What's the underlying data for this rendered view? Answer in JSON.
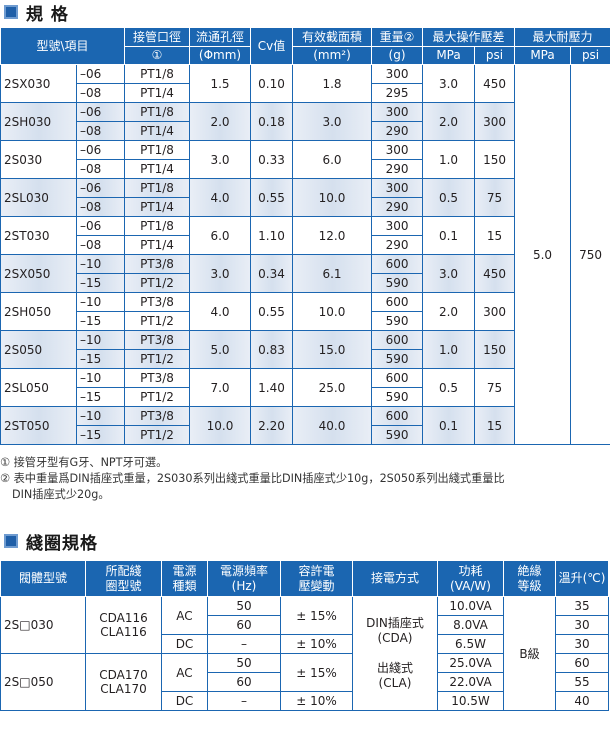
{
  "spec_section": {
    "title": "規 格",
    "headers": {
      "type": "型號\\項目",
      "port": "接管口徑",
      "port_note": "①",
      "orifice": "流通孔徑",
      "orifice_unit": "(Φmm)",
      "cv": "Cv值",
      "area": "有效截面積",
      "area_unit": "(mm²)",
      "weight": "重量②",
      "weight_unit": "(g)",
      "maxop": "最大操作壓差",
      "maxop_mpa": "MPa",
      "maxop_psi": "psi",
      "maxwithstand": "最大耐壓力",
      "mw_mpa": "MPa",
      "mw_psi": "psi"
    },
    "max_withstand_mpa": "5.0",
    "max_withstand_psi": "750",
    "models": [
      {
        "model": "2SX030",
        "shaded": false,
        "orifice": "1.5",
        "cv": "0.10",
        "area": "1.8",
        "mpa": "3.0",
        "psi": "450",
        "rows": [
          {
            "suffix": "–06",
            "port": "PT1/8",
            "weight": "300"
          },
          {
            "suffix": "–08",
            "port": "PT1/4",
            "weight": "295"
          }
        ]
      },
      {
        "model": "2SH030",
        "shaded": true,
        "orifice": "2.0",
        "cv": "0.18",
        "area": "3.0",
        "mpa": "2.0",
        "psi": "300",
        "rows": [
          {
            "suffix": "–06",
            "port": "PT1/8",
            "weight": "300"
          },
          {
            "suffix": "–08",
            "port": "PT1/4",
            "weight": "290"
          }
        ]
      },
      {
        "model": "2S030",
        "shaded": false,
        "orifice": "3.0",
        "cv": "0.33",
        "area": "6.0",
        "mpa": "1.0",
        "psi": "150",
        "rows": [
          {
            "suffix": "–06",
            "port": "PT1/8",
            "weight": "300"
          },
          {
            "suffix": "–08",
            "port": "PT1/4",
            "weight": "290"
          }
        ]
      },
      {
        "model": "2SL030",
        "shaded": true,
        "orifice": "4.0",
        "cv": "0.55",
        "area": "10.0",
        "mpa": "0.5",
        "psi": "75",
        "rows": [
          {
            "suffix": "–06",
            "port": "PT1/8",
            "weight": "300"
          },
          {
            "suffix": "–08",
            "port": "PT1/4",
            "weight": "290"
          }
        ]
      },
      {
        "model": "2ST030",
        "shaded": false,
        "orifice": "6.0",
        "cv": "1.10",
        "area": "12.0",
        "mpa": "0.1",
        "psi": "15",
        "rows": [
          {
            "suffix": "–06",
            "port": "PT1/8",
            "weight": "300"
          },
          {
            "suffix": "–08",
            "port": "PT1/4",
            "weight": "290"
          }
        ]
      },
      {
        "model": "2SX050",
        "shaded": true,
        "orifice": "3.0",
        "cv": "0.34",
        "area": "6.1",
        "mpa": "3.0",
        "psi": "450",
        "rows": [
          {
            "suffix": "–10",
            "port": "PT3/8",
            "weight": "600"
          },
          {
            "suffix": "–15",
            "port": "PT1/2",
            "weight": "590"
          }
        ]
      },
      {
        "model": "2SH050",
        "shaded": false,
        "orifice": "4.0",
        "cv": "0.55",
        "area": "10.0",
        "mpa": "2.0",
        "psi": "300",
        "rows": [
          {
            "suffix": "–10",
            "port": "PT3/8",
            "weight": "600"
          },
          {
            "suffix": "–15",
            "port": "PT1/2",
            "weight": "590"
          }
        ]
      },
      {
        "model": "2S050",
        "shaded": true,
        "orifice": "5.0",
        "cv": "0.83",
        "area": "15.0",
        "mpa": "1.0",
        "psi": "150",
        "rows": [
          {
            "suffix": "–10",
            "port": "PT3/8",
            "weight": "600"
          },
          {
            "suffix": "–15",
            "port": "PT1/2",
            "weight": "590"
          }
        ]
      },
      {
        "model": "2SL050",
        "shaded": false,
        "orifice": "7.0",
        "cv": "1.40",
        "area": "25.0",
        "mpa": "0.5",
        "psi": "75",
        "rows": [
          {
            "suffix": "–10",
            "port": "PT3/8",
            "weight": "600"
          },
          {
            "suffix": "–15",
            "port": "PT1/2",
            "weight": "590"
          }
        ]
      },
      {
        "model": "2ST050",
        "shaded": true,
        "orifice": "10.0",
        "cv": "2.20",
        "area": "40.0",
        "mpa": "0.1",
        "psi": "15",
        "rows": [
          {
            "suffix": "–10",
            "port": "PT3/8",
            "weight": "600"
          },
          {
            "suffix": "–15",
            "port": "PT1/2",
            "weight": "590"
          }
        ]
      }
    ]
  },
  "notes": {
    "note1": "① 接管牙型有G牙、NPT牙可選。",
    "note2": "② 表中重量爲DIN插座式重量，2S030系列出綫式重量比DIN插座式少10g，2S050系列出綫式重量比",
    "note2b": "DIN插座式少20g。"
  },
  "coil_section": {
    "title": "綫圈規格",
    "headers": {
      "body": "閥體型號",
      "coil1": "所配綫",
      "coil2": "圈型號",
      "power1": "電源",
      "power2": "種類",
      "freq1": "電源頻率",
      "freq2": "(Hz)",
      "tol1": "容許電",
      "tol2": "壓變動",
      "conn": "接電方式",
      "consume1": "功耗",
      "consume2": "(VA/W)",
      "insul1": "絶緣",
      "insul2": "等級",
      "temp": "溫升(℃)"
    },
    "connection1": "DIN插座式",
    "connection1b": "(CDA)",
    "connection2": "出綫式",
    "connection2b": "(CLA)",
    "insulation": "B級",
    "groups": [
      {
        "body": "2S□030",
        "coil1": "CDA116",
        "coil2": "CLA116",
        "ac": "AC",
        "ac_tol": "± 15%",
        "rows": [
          {
            "freq": "50",
            "consume": "10.0VA",
            "temp": "35"
          },
          {
            "freq": "60",
            "consume": "8.0VA",
            "temp": "30"
          }
        ],
        "dc": "DC",
        "dc_freq": "–",
        "dc_tol": "± 10%",
        "dc_consume": "6.5W",
        "dc_temp": "30"
      },
      {
        "body": "2S□050",
        "coil1": "CDA170",
        "coil2": "CLA170",
        "ac": "AC",
        "ac_tol": "± 15%",
        "rows": [
          {
            "freq": "50",
            "consume": "25.0VA",
            "temp": "60"
          },
          {
            "freq": "60",
            "consume": "22.0VA",
            "temp": "55"
          }
        ],
        "dc": "DC",
        "dc_freq": "–",
        "dc_tol": "± 10%",
        "dc_consume": "10.5W",
        "dc_temp": "40"
      }
    ]
  }
}
